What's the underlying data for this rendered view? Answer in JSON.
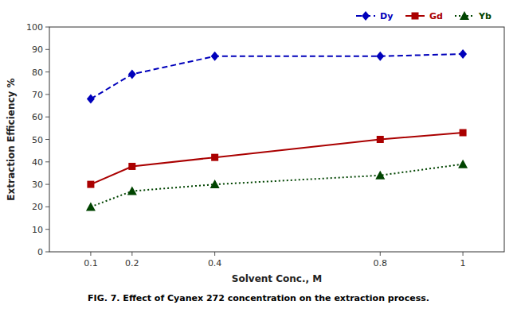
{
  "chart_data": {
    "type": "line",
    "x": [
      0.1,
      0.2,
      0.4,
      0.8,
      1.0
    ],
    "xlabel": "Solvent Conc., M",
    "ylabel": "Extraction Efficiency %",
    "caption": "FIG. 7. Effect of Cyanex 272 concentration on the extraction process.",
    "xlim": [
      0,
      1.1
    ],
    "xticks": [
      0.1,
      0.2,
      0.4,
      0.8,
      1
    ],
    "ylim": [
      0,
      100
    ],
    "yticks": [
      0,
      10,
      20,
      30,
      40,
      50,
      60,
      70,
      80,
      90,
      100
    ],
    "grid": false,
    "legend": "upper right",
    "series": [
      {
        "name": "Dy",
        "color": "#0000BB",
        "line_style": "dashed",
        "marker": "diamond",
        "values": [
          68,
          79,
          87,
          87,
          88
        ]
      },
      {
        "name": "Gd",
        "color": "#AA0000",
        "line_style": "solid",
        "marker": "square",
        "values": [
          30,
          38,
          42,
          50,
          53
        ]
      },
      {
        "name": "Yb",
        "color": "#004400",
        "line_style": "dotted",
        "marker": "triangle",
        "values": [
          20,
          27,
          30,
          34,
          39
        ]
      }
    ]
  }
}
